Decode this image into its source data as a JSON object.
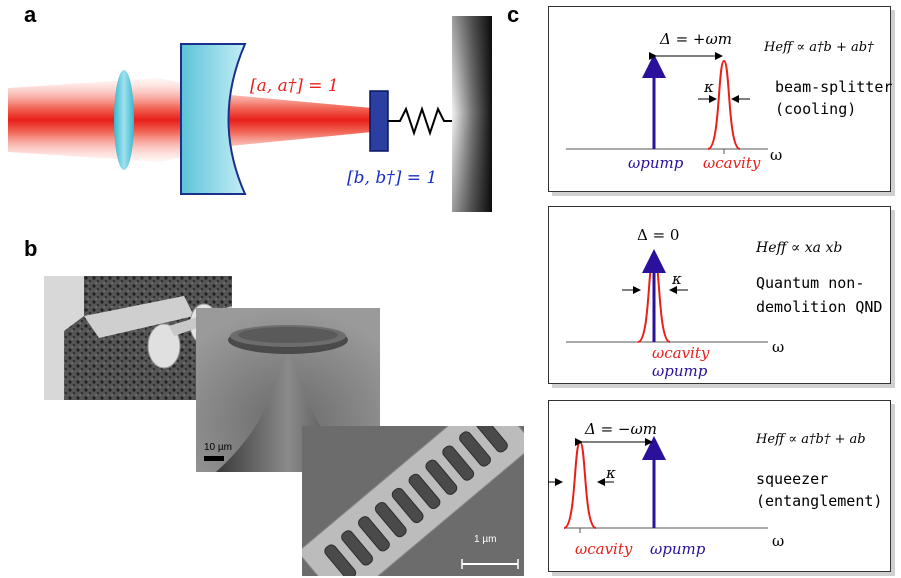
{
  "panels": {
    "a": "a",
    "b": "b",
    "c": "c"
  },
  "panel_a": {
    "cavity_commutator": "[a, a†] = 1",
    "mechanical_commutator": "[b, b†] = 1",
    "colors": {
      "laser": "#e8201a",
      "cavity_text": "#e8201a",
      "mech_text": "#1a2cc8",
      "mirror": "#7fd0e0"
    }
  },
  "panel_b": {
    "scale_10um": "10 µm",
    "scale_1um": "1 µm"
  },
  "panel_c": {
    "boxes": [
      {
        "detuning": "Δ = +ωm",
        "hamiltonian": "Heff ∝ a†b + ab†",
        "desc_line1": "beam-splitter",
        "desc_line2": "(cooling)",
        "kappa": "κ",
        "pump_label": "ωpump",
        "cavity_label": "ωcavity",
        "axis_label": "ω"
      },
      {
        "detuning": "Δ = 0",
        "hamiltonian": "Heff ∝ xa xb",
        "desc_line1": "Quantum non-",
        "desc_line2": "demolition QND",
        "kappa": "κ",
        "pump_label": "ωpump",
        "cavity_label": "ωcavity",
        "axis_label": "ω"
      },
      {
        "detuning": "Δ = −ωm",
        "hamiltonian": "Heff ∝ a†b† + ab",
        "desc_line1": "squeezer",
        "desc_line2": "(entanglement)",
        "kappa": "κ",
        "pump_label": "ωpump",
        "cavity_label": "ωcavity",
        "axis_label": "ω"
      }
    ],
    "colors": {
      "pump": "#2a109a",
      "cavity": "#e8201a"
    }
  }
}
